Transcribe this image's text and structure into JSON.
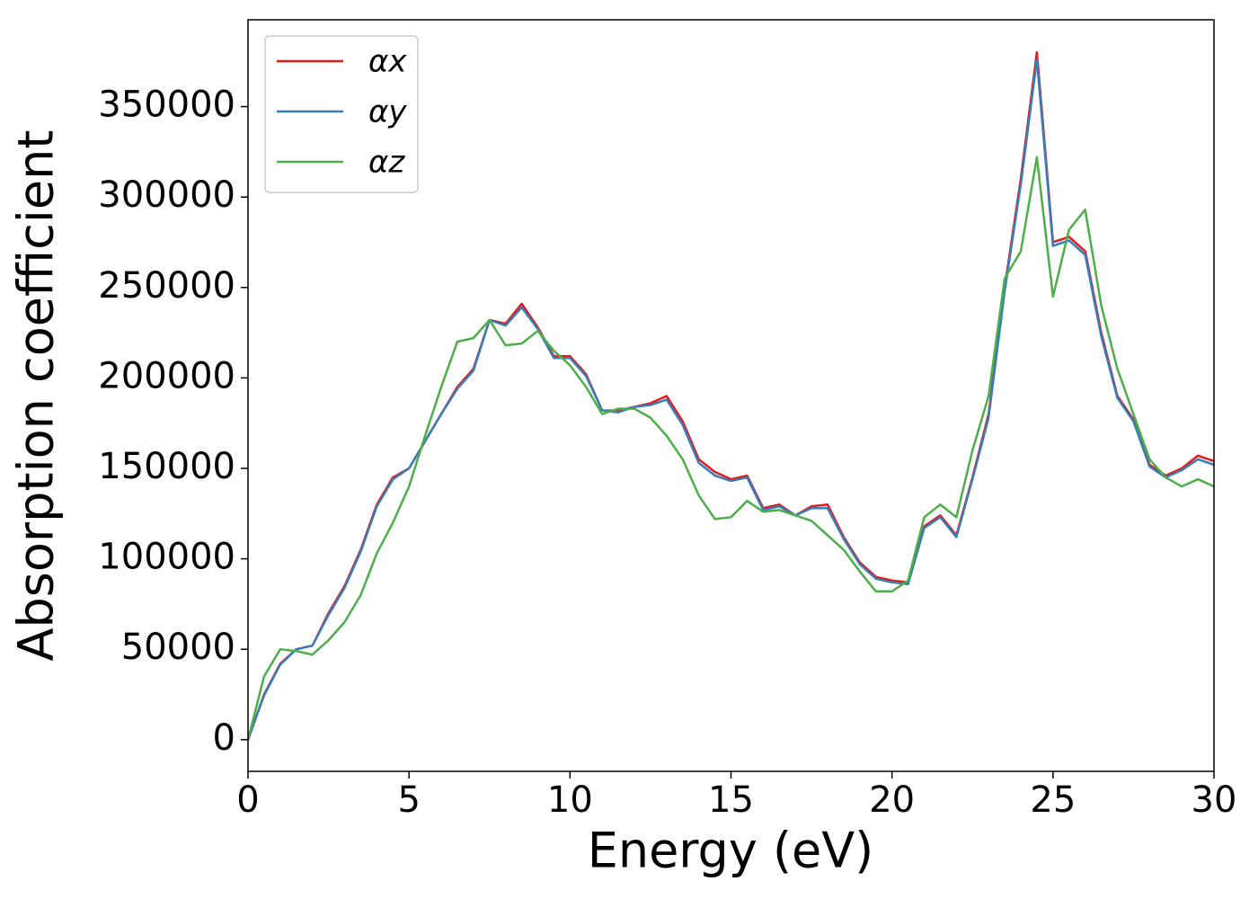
{
  "chart_data": {
    "type": "line",
    "xlabel": "Energy (eV)",
    "ylabel": "Absorption coefficient",
    "x": [
      0,
      0.5,
      1,
      1.5,
      2,
      2.5,
      3,
      3.5,
      4,
      4.5,
      5,
      5.5,
      6,
      6.5,
      7,
      7.5,
      8,
      8.5,
      9,
      9.5,
      10,
      10.5,
      11,
      11.5,
      12,
      12.5,
      13,
      13.5,
      14,
      14.5,
      15,
      15.5,
      16,
      16.5,
      17,
      17.5,
      18,
      18.5,
      19,
      19.5,
      20,
      20.5,
      21,
      21.5,
      22,
      22.5,
      23,
      23.5,
      24,
      24.5,
      25,
      25.5,
      26,
      26.5,
      27,
      27.5,
      28,
      28.5,
      29,
      29.5,
      30
    ],
    "series": [
      {
        "name": "αx",
        "color": "#e41a1c",
        "values": [
          0,
          25000,
          42000,
          50000,
          52000,
          70000,
          85000,
          105000,
          130000,
          145000,
          150000,
          165000,
          180000,
          195000,
          205000,
          232000,
          230000,
          241000,
          228000,
          212000,
          212000,
          202000,
          182000,
          182000,
          184000,
          186000,
          190000,
          176000,
          155000,
          148000,
          144000,
          146000,
          128000,
          130000,
          124000,
          129000,
          130000,
          112000,
          98000,
          90000,
          88000,
          87000,
          118000,
          124000,
          113000,
          145000,
          180000,
          250000,
          310000,
          380000,
          275000,
          278000,
          270000,
          225000,
          190000,
          177000,
          152000,
          146000,
          150000,
          157000,
          154000
        ]
      },
      {
        "name": "αy",
        "color": "#377eb8",
        "values": [
          0,
          24500,
          41500,
          50000,
          52000,
          69000,
          84000,
          104000,
          129000,
          144000,
          150000,
          165000,
          180000,
          194000,
          204000,
          232000,
          229000,
          239000,
          227000,
          211000,
          211000,
          201000,
          182000,
          181000,
          184000,
          185000,
          188000,
          174000,
          153000,
          146000,
          143000,
          145000,
          127000,
          129000,
          124000,
          128000,
          128000,
          111000,
          97000,
          89000,
          87000,
          86000,
          117000,
          123000,
          112000,
          144000,
          178000,
          248000,
          307000,
          376000,
          273000,
          276000,
          268000,
          223000,
          189000,
          176000,
          151000,
          145000,
          149000,
          155000,
          152000
        ]
      },
      {
        "name": "αz",
        "color": "#4daf4a",
        "values": [
          0,
          35000,
          50000,
          49000,
          47000,
          55000,
          65000,
          80000,
          103000,
          120000,
          140000,
          168000,
          195000,
          220000,
          222000,
          232000,
          218000,
          219000,
          226000,
          215000,
          207000,
          195000,
          180000,
          183000,
          183000,
          178000,
          168000,
          155000,
          135000,
          122000,
          123000,
          132000,
          126000,
          127000,
          124000,
          121000,
          113000,
          105000,
          93000,
          82000,
          82000,
          88000,
          123000,
          130000,
          123000,
          160000,
          190000,
          255000,
          270000,
          322000,
          245000,
          282000,
          293000,
          240000,
          205000,
          180000,
          155000,
          145000,
          140000,
          144000,
          140000
        ]
      }
    ],
    "xlim": [
      0,
      30
    ],
    "xticks": [
      0,
      5,
      10,
      15,
      20,
      25,
      30
    ],
    "ylim": [
      -17500,
      398000
    ],
    "yticks": [
      0,
      50000,
      100000,
      150000,
      200000,
      250000,
      300000,
      350000
    ],
    "legend": "upper left"
  }
}
